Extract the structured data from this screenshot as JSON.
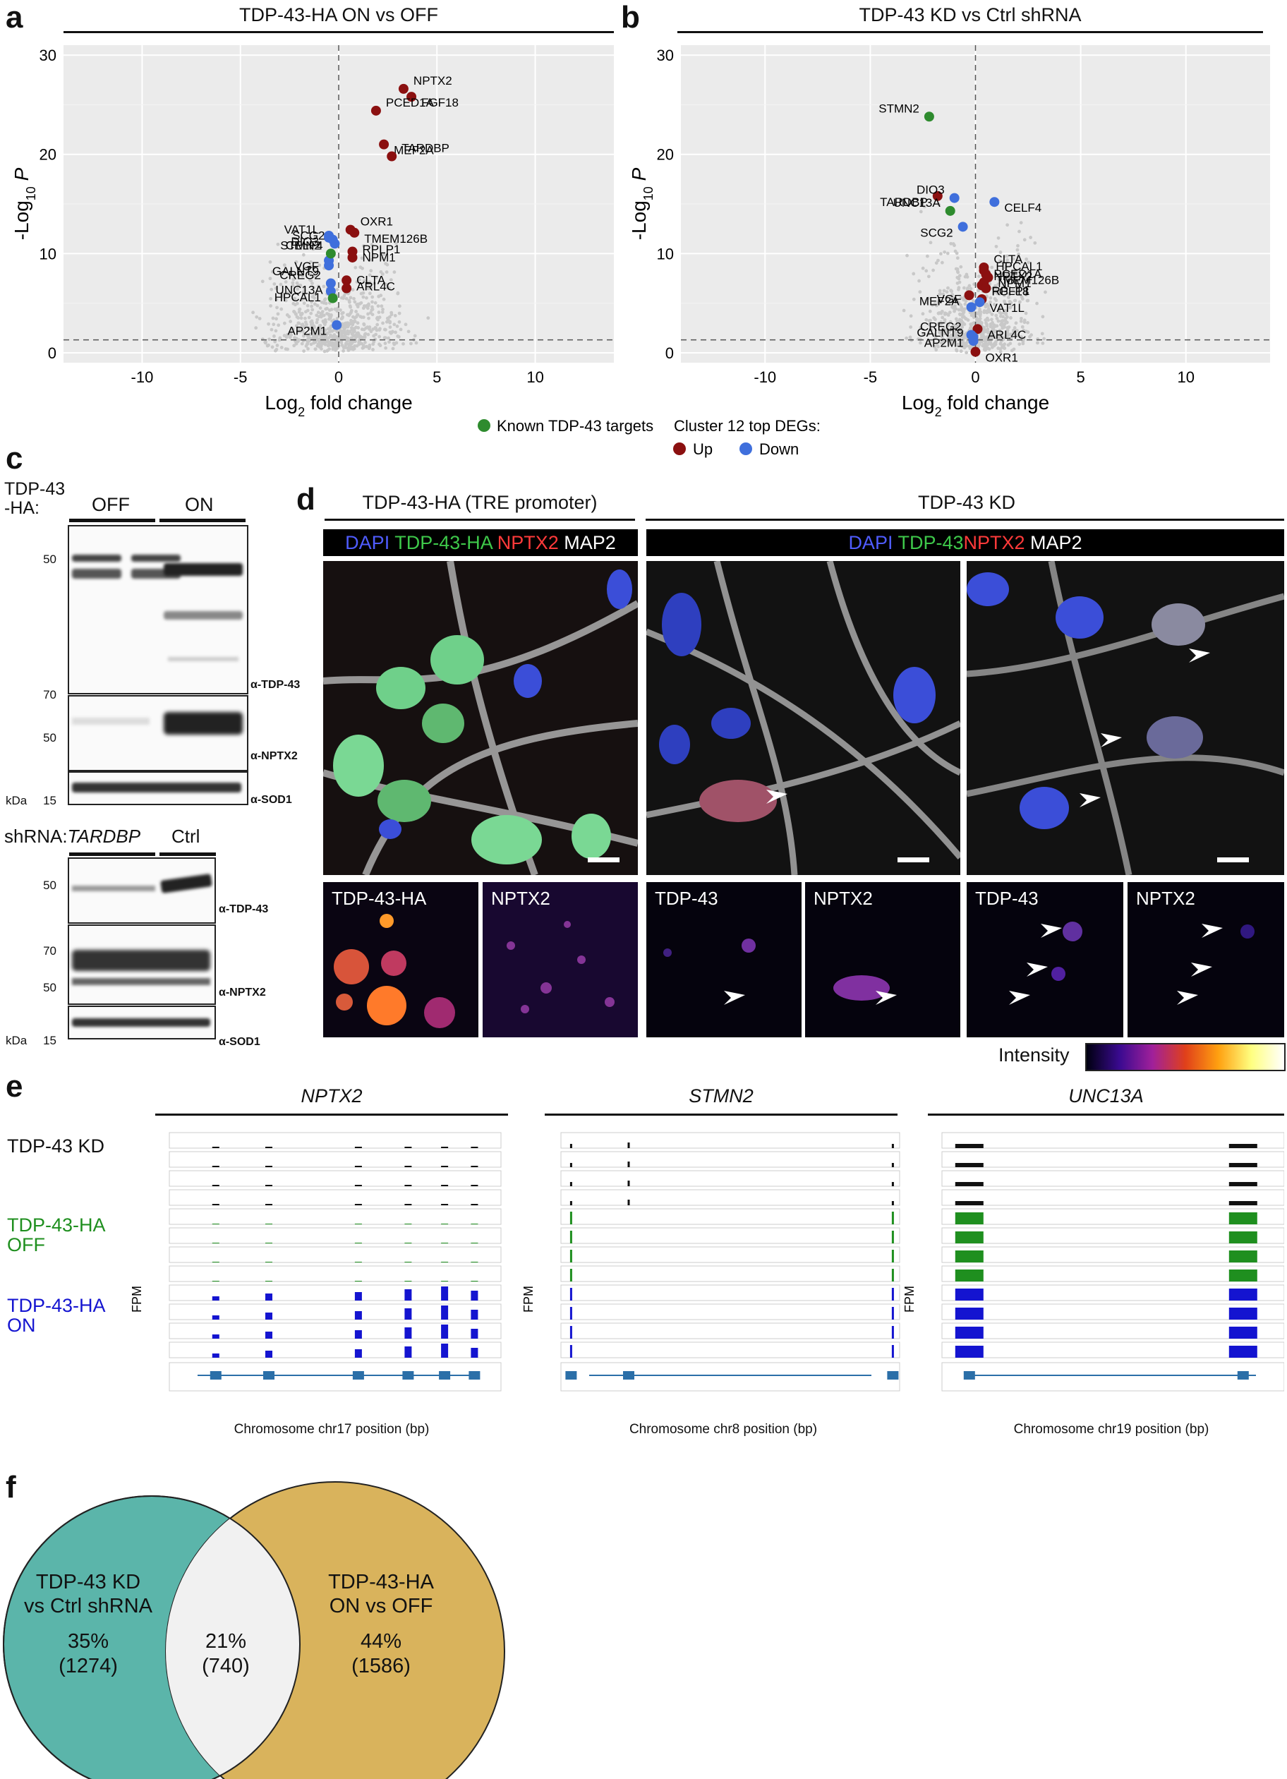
{
  "panels": {
    "a": "a",
    "b": "b",
    "c": "c",
    "d": "d",
    "e": "e",
    "f": "f"
  },
  "volcano_a": {
    "title": "TDP-43-HA ON vs OFF"
  },
  "volcano_b": {
    "title": "TDP-43 KD vs Ctrl shRNA"
  },
  "volcano_axes": {
    "ylabel": "-Log10 P",
    "xlabel": "Log2 fold change",
    "xticks": [
      "-10",
      "-5",
      "0",
      "5",
      "10"
    ],
    "yticks": [
      "0",
      "10",
      "20",
      "30"
    ]
  },
  "legend": {
    "known": "Known TDP-43 targets",
    "cluster_title": "Cluster 12 top DEGs:",
    "up": "Up",
    "down": "Down",
    "colors": {
      "known": "#2e8b2e",
      "up": "#8b1010",
      "down": "#3f6fdc",
      "bg": "#c8c8c8"
    }
  },
  "chart_data": [
    {
      "type": "scatter",
      "title": "TDP-43-HA ON vs OFF",
      "xlabel": "Log2 fold change",
      "ylabel": "-Log10 P",
      "xlim": [
        -14,
        14
      ],
      "ylim": [
        -1,
        31
      ],
      "threshold_y": 1.3,
      "labeled_points": [
        {
          "label": "NPTX2",
          "x": 3.3,
          "y": 26.6,
          "group": "up"
        },
        {
          "label": "FGF18",
          "x": 3.7,
          "y": 25.8,
          "group": "up"
        },
        {
          "label": "PCED1A",
          "x": 1.9,
          "y": 24.4,
          "group": "up"
        },
        {
          "label": "MEF2A",
          "x": 2.3,
          "y": 21.0,
          "group": "up"
        },
        {
          "label": "TARDBP",
          "x": 2.7,
          "y": 19.8,
          "group": "up"
        },
        {
          "label": "TMEM126B",
          "x": 0.8,
          "y": 12.1,
          "group": "up"
        },
        {
          "label": "OXR1",
          "x": 0.6,
          "y": 12.4,
          "group": "up"
        },
        {
          "label": "NPM1",
          "x": 0.7,
          "y": 10.2,
          "group": "up"
        },
        {
          "label": "RPLP1",
          "x": 0.7,
          "y": 9.6,
          "group": "up"
        },
        {
          "label": "ARL4C",
          "x": 0.4,
          "y": 7.3,
          "group": "up"
        },
        {
          "label": "CLTA",
          "x": 0.4,
          "y": 6.5,
          "group": "up"
        },
        {
          "label": "DIO3",
          "x": -0.5,
          "y": 11.8,
          "group": "down"
        },
        {
          "label": "VAT1L",
          "x": -0.5,
          "y": 11.6,
          "group": "down"
        },
        {
          "label": "CELF4",
          "x": -0.3,
          "y": 11.4,
          "group": "down"
        },
        {
          "label": "SCG2",
          "x": -0.2,
          "y": 11.0,
          "group": "down"
        },
        {
          "label": "VGF",
          "x": -0.5,
          "y": 9.3,
          "group": "down"
        },
        {
          "label": "STMN2",
          "x": -0.4,
          "y": 10.0,
          "group": "known"
        },
        {
          "label": "GALNT9",
          "x": -0.5,
          "y": 8.8,
          "group": "down"
        },
        {
          "label": "CREG2",
          "x": -0.4,
          "y": 7.0,
          "group": "down"
        },
        {
          "label": "HPCAL1",
          "x": -0.4,
          "y": 6.2,
          "group": "down"
        },
        {
          "label": "UNC13A",
          "x": -0.3,
          "y": 5.5,
          "group": "known"
        },
        {
          "label": "AP2M1",
          "x": -0.1,
          "y": 2.8,
          "group": "down"
        }
      ]
    },
    {
      "type": "scatter",
      "title": "TDP-43 KD vs Ctrl shRNA",
      "xlabel": "Log2 fold change",
      "ylabel": "-Log10 P",
      "xlim": [
        -14,
        14
      ],
      "ylim": [
        -1,
        31
      ],
      "threshold_y": 1.3,
      "labeled_points": [
        {
          "label": "STMN2",
          "x": -2.2,
          "y": 23.8,
          "group": "known"
        },
        {
          "label": "TARDBP",
          "x": -1.8,
          "y": 15.8,
          "group": "up"
        },
        {
          "label": "DIO3",
          "x": -1.0,
          "y": 15.6,
          "group": "down"
        },
        {
          "label": "CELF4",
          "x": 0.9,
          "y": 15.2,
          "group": "down"
        },
        {
          "label": "UNC13A",
          "x": -1.2,
          "y": 14.3,
          "group": "known"
        },
        {
          "label": "SCG2",
          "x": -0.6,
          "y": 12.7,
          "group": "down"
        },
        {
          "label": "CLTA",
          "x": 0.4,
          "y": 8.6,
          "group": "up"
        },
        {
          "label": "NPTX2",
          "x": 0.4,
          "y": 8.3,
          "group": "up"
        },
        {
          "label": "HPCAL1",
          "x": 0.5,
          "y": 7.9,
          "group": "up"
        },
        {
          "label": "NPM1",
          "x": 0.6,
          "y": 7.6,
          "group": "up"
        },
        {
          "label": "PCED1A",
          "x": 0.4,
          "y": 7.1,
          "group": "up"
        },
        {
          "label": "FGF18",
          "x": 0.3,
          "y": 6.8,
          "group": "up"
        },
        {
          "label": "TMEM126B",
          "x": 0.5,
          "y": 6.5,
          "group": "up"
        },
        {
          "label": "MEF2A",
          "x": -0.3,
          "y": 5.8,
          "group": "up"
        },
        {
          "label": "RPLP1",
          "x": 0.3,
          "y": 5.4,
          "group": "up"
        },
        {
          "label": "VAT1L",
          "x": 0.2,
          "y": 5.1,
          "group": "down"
        },
        {
          "label": "VGF",
          "x": -0.2,
          "y": 4.6,
          "group": "down"
        },
        {
          "label": "ARL4C",
          "x": 0.1,
          "y": 2.4,
          "group": "up"
        },
        {
          "label": "CREG2",
          "x": -0.2,
          "y": 1.8,
          "group": "down"
        },
        {
          "label": "AP2M1",
          "x": -0.1,
          "y": 1.6,
          "group": "down"
        },
        {
          "label": "GALNT9",
          "x": -0.1,
          "y": 1.2,
          "group": "down"
        },
        {
          "label": "OXR1",
          "x": 0.0,
          "y": 0.1,
          "group": "up"
        }
      ]
    }
  ],
  "blots": {
    "top_header": "TDP-43\n-HA:",
    "off": "OFF",
    "on": "ON",
    "ab_tdp43": "α-TDP-43",
    "ab_nptx2": "α-NPTX2",
    "ab_sod1": "α-SOD1",
    "mw_50": "50",
    "mw_70": "70",
    "mw_15": "15",
    "kda": "kDa",
    "shrna_prefix": "shRNA:",
    "shrna_gene": "TARDBP",
    "ctrl": "Ctrl"
  },
  "micro": {
    "left_title": "TDP-43-HA (TRE promoter)",
    "right_title": "TDP-43 KD",
    "left_bar": [
      {
        "t": "DAPI ",
        "c": "#4f5cff"
      },
      {
        "t": "TDP-43-HA ",
        "c": "#3ec84a"
      },
      {
        "t": "NPTX2 ",
        "c": "#ff3a3a"
      },
      {
        "t": "MAP2",
        "c": "#ffffff"
      }
    ],
    "right_bar": [
      {
        "t": "DAPI ",
        "c": "#4f5cff"
      },
      {
        "t": "TDP-43",
        "c": "#3ec84a"
      },
      {
        "t": "NPTX2 ",
        "c": "#ff3a3a"
      },
      {
        "t": "MAP2",
        "c": "#ffffff"
      }
    ],
    "inset_tdp43ha": "TDP-43-HA",
    "inset_nptx2": "NPTX2",
    "inset_tdp43": "TDP-43",
    "intensity": "Intensity"
  },
  "tracks": {
    "genes": [
      "NPTX2",
      "STMN2",
      "UNC13A"
    ],
    "rows": {
      "kd": "TDP-43 KD",
      "off": "TDP-43-HA\nOFF",
      "on": "TDP-43-HA\nON"
    },
    "fpm": "FPM",
    "xcaps": [
      "Chromosome chr17 position (bp)",
      "Chromosome chr8 position (bp)",
      "Chromosome chr19 position (bp)"
    ],
    "colors": {
      "kd": "#111111",
      "off": "#1f8f1f",
      "on": "#1414d0",
      "gene": "#2b6fa8",
      "gene_light": "#a8d4ea"
    }
  },
  "venn": {
    "left_label": "TDP-43 KD\nvs Ctrl shRNA",
    "right_label": "TDP-43-HA\nON vs OFF",
    "left_pct": "35%",
    "left_n": "(1274)",
    "mid_pct": "21%",
    "mid_n": "(740)",
    "right_pct": "44%",
    "right_n": "(1586)",
    "colors": {
      "left": "#5bb5aa",
      "right": "#d9b35c",
      "mid": "#f1f1f1"
    }
  }
}
